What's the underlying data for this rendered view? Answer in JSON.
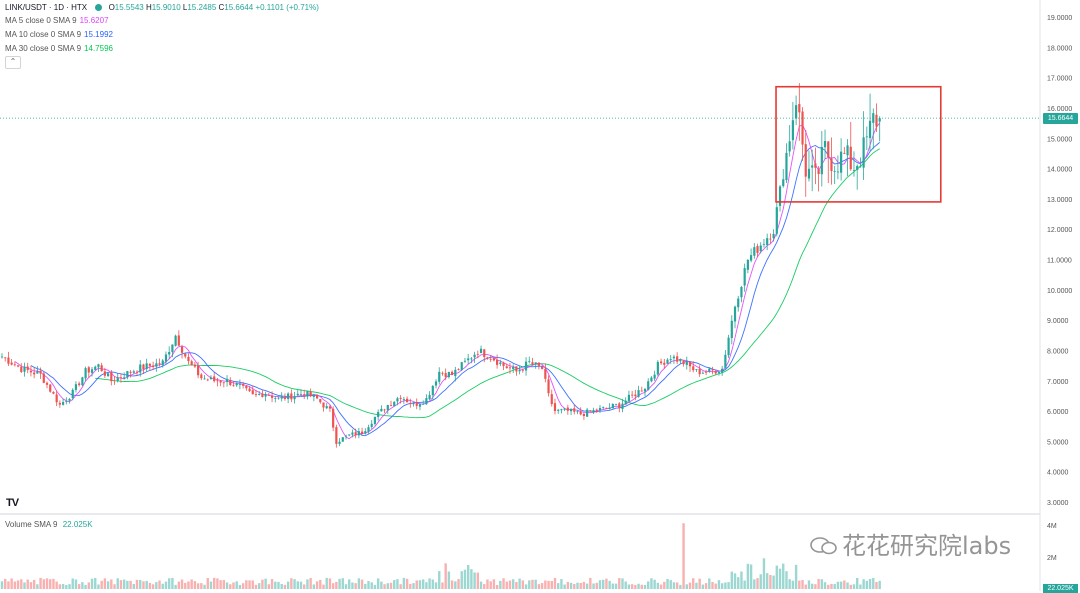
{
  "header": {
    "symbol": "LINK/USDT · 1D · HTX",
    "open_label": "O",
    "open": "15.5543",
    "high_label": "H",
    "high": "15.9010",
    "low_label": "L",
    "low": "15.2485",
    "close_label": "C",
    "close": "15.6644",
    "change": "+0.1101 (+0.71%)"
  },
  "indicators": [
    {
      "label": "MA 5 close 0 SMA 9",
      "value": "15.6207",
      "color": "#e040fb"
    },
    {
      "label": "MA 10 close 0 SMA 9",
      "value": "15.1992",
      "color": "#2962ff"
    },
    {
      "label": "MA 30 close 0 SMA 9",
      "value": "14.7596",
      "color": "#00c853"
    }
  ],
  "volume_indicator": {
    "label": "Volume SMA 9",
    "value": "22.025K"
  },
  "current_price_tag": "15.6644",
  "volume_tag": "22.025K",
  "watermark": "花花研究院labs",
  "logo_text": "TV",
  "collapse_icon": "chevron-up-icon",
  "colors": {
    "up": "#26a69a",
    "down": "#ef5350",
    "highlight_box": "#e53935"
  },
  "chart_data": {
    "type": "candlestick",
    "symbol": "LINK/USDT",
    "interval": "1D",
    "ylim": [
      3,
      19
    ],
    "y_ticks": [
      "19.0000",
      "18.0000",
      "17.0000",
      "16.0000",
      "15.0000",
      "14.0000",
      "13.0000",
      "12.0000",
      "11.0000",
      "10.0000",
      "9.0000",
      "8.0000",
      "7.0000",
      "6.0000",
      "5.0000",
      "4.0000",
      "3.0000"
    ],
    "volume_ticks": [
      "4M",
      "2M"
    ],
    "close_anchors": [
      [
        0,
        7.8
      ],
      [
        6,
        7.4
      ],
      [
        12,
        7.2
      ],
      [
        18,
        6.2
      ],
      [
        22,
        6.6
      ],
      [
        26,
        7.3
      ],
      [
        30,
        7.5
      ],
      [
        34,
        7.0
      ],
      [
        38,
        7.2
      ],
      [
        42,
        7.4
      ],
      [
        46,
        7.5
      ],
      [
        50,
        7.6
      ],
      [
        54,
        8.5
      ],
      [
        58,
        7.6
      ],
      [
        62,
        7.1
      ],
      [
        66,
        7.0
      ],
      [
        70,
        7.0
      ],
      [
        74,
        6.8
      ],
      [
        78,
        6.5
      ],
      [
        82,
        6.6
      ],
      [
        86,
        6.4
      ],
      [
        90,
        6.5
      ],
      [
        94,
        6.6
      ],
      [
        98,
        6.4
      ],
      [
        102,
        6.0
      ],
      [
        104,
        5.0
      ],
      [
        108,
        5.2
      ],
      [
        112,
        5.3
      ],
      [
        116,
        5.8
      ],
      [
        120,
        6.2
      ],
      [
        124,
        6.5
      ],
      [
        128,
        6.2
      ],
      [
        132,
        6.4
      ],
      [
        136,
        7.3
      ],
      [
        140,
        7.2
      ],
      [
        144,
        7.6
      ],
      [
        148,
        8.0
      ],
      [
        152,
        7.8
      ],
      [
        156,
        7.5
      ],
      [
        160,
        7.3
      ],
      [
        164,
        7.6
      ],
      [
        168,
        7.4
      ],
      [
        170,
        6.5
      ],
      [
        172,
        6.0
      ],
      [
        176,
        6.0
      ],
      [
        180,
        5.9
      ],
      [
        184,
        6.0
      ],
      [
        188,
        6.1
      ],
      [
        192,
        6.2
      ],
      [
        196,
        6.5
      ],
      [
        200,
        6.8
      ],
      [
        204,
        7.5
      ],
      [
        208,
        7.8
      ],
      [
        212,
        7.6
      ],
      [
        216,
        7.3
      ],
      [
        220,
        7.3
      ],
      [
        224,
        7.4
      ],
      [
        228,
        9.5
      ],
      [
        232,
        11.0
      ],
      [
        236,
        11.5
      ],
      [
        240,
        12.0
      ],
      [
        244,
        14.5
      ],
      [
        247,
        16.4
      ],
      [
        250,
        14.0
      ],
      [
        253,
        13.6
      ],
      [
        256,
        14.6
      ],
      [
        259,
        14.2
      ],
      [
        262,
        14.4
      ],
      [
        265,
        14.1
      ],
      [
        268,
        14.6
      ],
      [
        271,
        15.6
      ],
      [
        273,
        15.66
      ]
    ],
    "candle_count": 274,
    "highlight": {
      "from_index": 242,
      "to_index": 292,
      "price_low": 12.9,
      "price_high": 16.7
    }
  }
}
